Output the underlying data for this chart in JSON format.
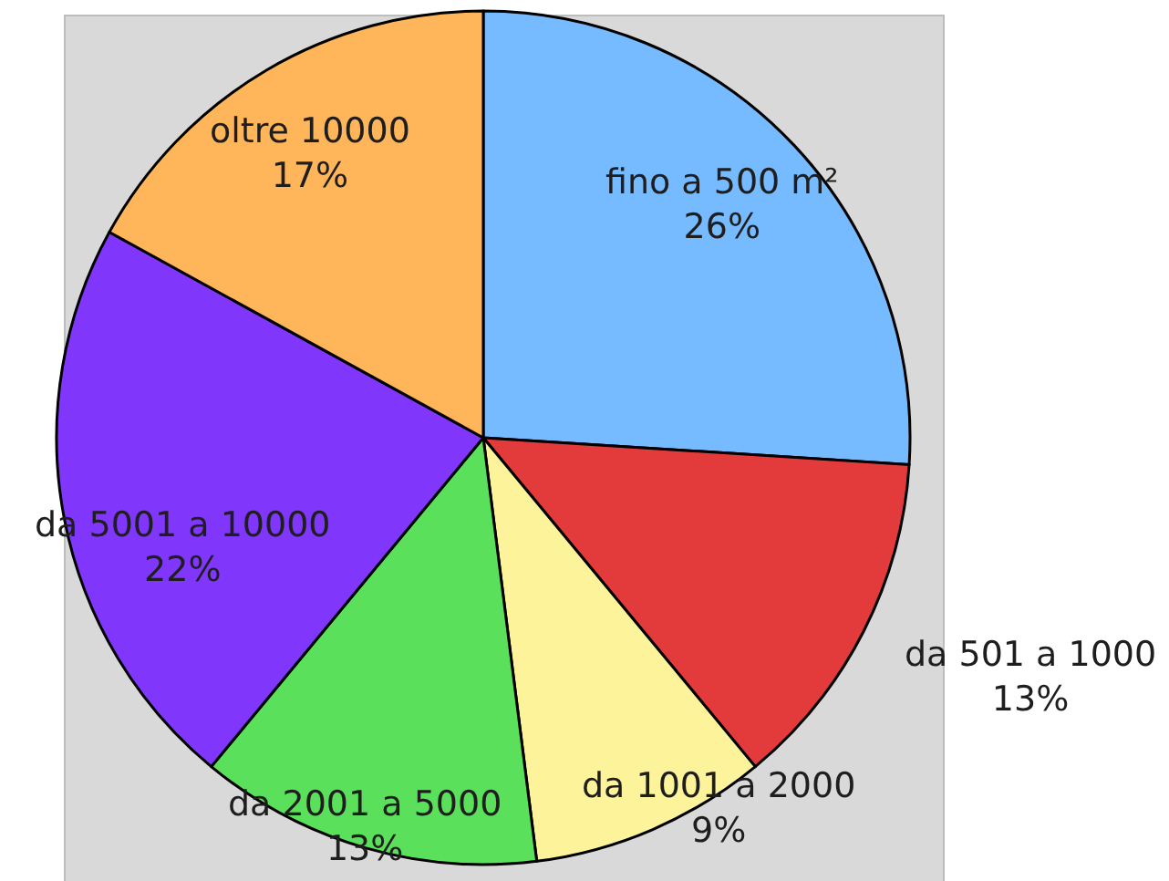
{
  "chart_data": {
    "type": "pie",
    "categories": [
      "fino a 500 m²",
      "da 501 a 1000",
      "da 1001 a 2000",
      "da 2001 a 5000",
      "da 5001 a 10000",
      "oltre 10000"
    ],
    "values": [
      26,
      13,
      9,
      13,
      22,
      17
    ],
    "value_labels": [
      "26%",
      "13%",
      "9%",
      "13%",
      "22%",
      "17%"
    ],
    "colors": [
      "#76baff",
      "#e33b3b",
      "#fdf39b",
      "#5be05b",
      "#8036fb",
      "#ffb55a"
    ]
  }
}
